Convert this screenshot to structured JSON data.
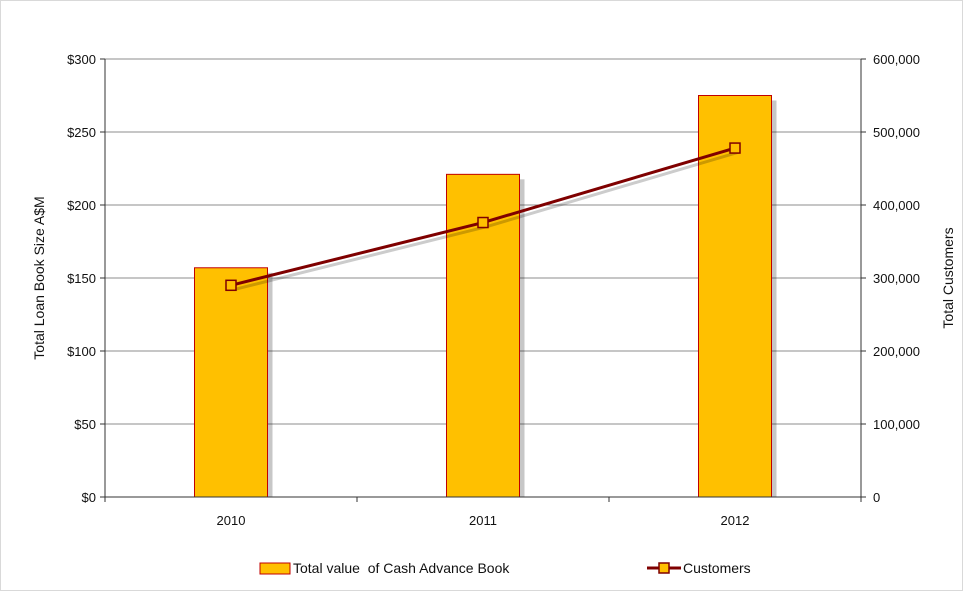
{
  "chart_data": {
    "type": "bar",
    "categories": [
      "2010",
      "2011",
      "2012"
    ],
    "series": [
      {
        "name": "Total value  of Cash Advance Book",
        "type": "bar",
        "axis": "left",
        "values": [
          157,
          221,
          275
        ],
        "color": "#ffc000",
        "edge_color": "#c00000"
      },
      {
        "name": "Customers",
        "type": "line",
        "axis": "right",
        "values": [
          290000,
          376000,
          478000
        ],
        "color": "#7f0000",
        "marker": "square",
        "marker_color": "#ffc000"
      }
    ],
    "ylabel": "Total Loan Book Size A$M",
    "y2label": "Total Customers",
    "ylim": [
      0,
      300
    ],
    "y2lim": [
      0,
      600000
    ],
    "yticks": [
      "$0",
      "$50",
      "$100",
      "$150",
      "$200",
      "$250",
      "$300"
    ],
    "y2ticks": [
      "0",
      "100,000",
      "200,000",
      "300,000",
      "400,000",
      "500,000",
      "600,000"
    ],
    "grid": true,
    "legend": "bottom"
  }
}
